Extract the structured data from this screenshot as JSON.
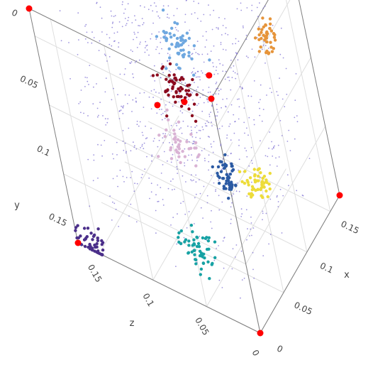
{
  "chart_data": {
    "type": "scatter",
    "projection": "3d",
    "axes": {
      "x": {
        "label": "x",
        "range": [
          0,
          0.17
        ],
        "ticks": [
          0,
          0.05,
          0.1,
          0.15
        ],
        "tick_labels": [
          "0",
          "0.05",
          "0.1",
          "0.15"
        ]
      },
      "y": {
        "label": "y",
        "range": [
          0,
          0.17
        ],
        "ticks": [
          0,
          0.05,
          0.1,
          0.15
        ],
        "tick_labels": [
          "0",
          "0.05",
          "0.1",
          "0.15"
        ]
      },
      "z": {
        "label": "z",
        "range": [
          0,
          0.17
        ],
        "ticks": [
          0,
          0.05,
          0.1,
          0.15
        ],
        "tick_labels": [
          "0",
          "0.05",
          "0.1",
          "0.15"
        ]
      }
    },
    "grid": true,
    "background_points": {
      "color": "#6a5acd",
      "description_count": 900
    },
    "clusters": [
      {
        "color": "#2b5aa3",
        "center": [
          0.0,
          0.11,
          0.0
        ],
        "spread": 0.012,
        "count": 55
      },
      {
        "color": "#17a2a4",
        "center": [
          0.0,
          0.04,
          0.05
        ],
        "spread": 0.012,
        "count": 55
      },
      {
        "color": "#e6943a",
        "center": [
          0.11,
          0.15,
          0.0
        ],
        "spread": 0.012,
        "count": 40
      },
      {
        "color": "#d9b3d4",
        "center": [
          0.07,
          0.06,
          0.09
        ],
        "spread": 0.014,
        "count": 40
      },
      {
        "color": "#8b0a1e",
        "center": [
          0.1,
          0.08,
          0.1
        ],
        "spread": 0.014,
        "count": 55
      },
      {
        "color": "#6fa8e0",
        "center": [
          0.13,
          0.09,
          0.11
        ],
        "spread": 0.013,
        "count": 55
      },
      {
        "color": "#4b2f8a",
        "center": [
          0.0,
          0.0,
          0.16
        ],
        "spread": 0.012,
        "count": 50
      },
      {
        "color": "#eddc3a",
        "center": [
          0.14,
          0.0,
          0.06
        ],
        "spread": 0.012,
        "count": 50
      }
    ],
    "highlighted_points": {
      "color": "#ff0000",
      "points": [
        [
          0,
          0,
          0
        ],
        [
          0.17,
          0,
          0
        ],
        [
          0,
          0,
          0.17
        ],
        [
          0.17,
          0,
          0.17
        ],
        [
          0,
          0.17,
          0
        ],
        [
          0.17,
          0.17,
          0
        ],
        [
          0,
          0.17,
          0.17
        ],
        [
          0.085,
          0.085,
          0.085
        ],
        [
          0.14,
          0.07,
          0.09
        ]
      ]
    }
  }
}
